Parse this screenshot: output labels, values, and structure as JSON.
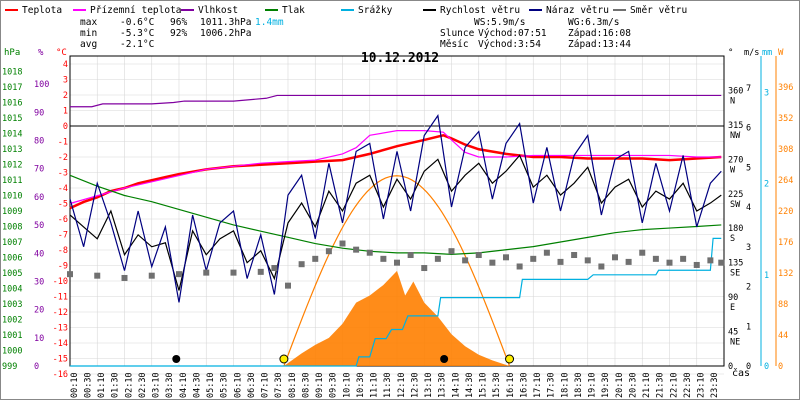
{
  "legend": [
    {
      "label": "Teplota",
      "color": "#ff0000"
    },
    {
      "label": "Přízemní teplota",
      "color": "#ff00ff"
    },
    {
      "label": "Vlhkost",
      "color": "#8000a0"
    },
    {
      "label": "Tlak",
      "color": "#008000"
    },
    {
      "label": "Srážky",
      "color": "#00b0e0"
    },
    {
      "label": "Rychlost větru",
      "color": "#000000"
    },
    {
      "label": "Náraz větru",
      "color": "#000080"
    },
    {
      "label": "Směr větru",
      "color": "#707070"
    }
  ],
  "stats": {
    "max": {
      "label": "max",
      "temp": "-0.6°C",
      "hum": "96%",
      "press": "1011.3hPa",
      "rain": "1.4mm"
    },
    "min": {
      "label": "min",
      "temp": "-5.3°C",
      "hum": "92%",
      "press": "1006.2hPa"
    },
    "avg": {
      "label": "avg",
      "temp": "-2.1°C"
    }
  },
  "wind_info": {
    "ws": "WS:5.9m/s",
    "wg": "WG:6.3m/s"
  },
  "sun": {
    "label": "Slunce",
    "rise": "Východ:07:51",
    "set": "Západ:16:08"
  },
  "moon": {
    "label": "Měsíc",
    "rise": "Východ:3:54",
    "set": "Západ:13:44"
  },
  "title": "10.12.2012",
  "x_unit_label": "čas",
  "chart_data": {
    "type": "line",
    "title": "10.12.2012",
    "x_ticks": [
      "00:10",
      "00:30",
      "01:10",
      "01:30",
      "02:10",
      "02:30",
      "03:10",
      "03:30",
      "04:10",
      "04:30",
      "05:10",
      "05:30",
      "06:10",
      "06:30",
      "07:10",
      "07:30",
      "08:10",
      "08:30",
      "09:10",
      "09:30",
      "10:10",
      "10:30",
      "11:10",
      "11:30",
      "12:10",
      "12:30",
      "13:10",
      "13:30",
      "14:10",
      "14:30",
      "15:10",
      "15:30",
      "16:10",
      "16:30",
      "17:10",
      "17:30",
      "18:10",
      "18:30",
      "19:10",
      "19:30",
      "20:10",
      "20:30",
      "21:10",
      "21:30",
      "22:10",
      "22:30",
      "23:10",
      "23:30"
    ],
    "axes": {
      "hpa": {
        "label": "hPa",
        "color": "#008000",
        "ticks": [
          "1018",
          "1017",
          "1016",
          "1015",
          "1014",
          "1013",
          "1012",
          "1011",
          "1010",
          "1009",
          "1008",
          "1007",
          "1006",
          "1005",
          "1004",
          "1003",
          "1002",
          "1001",
          "1000",
          "999"
        ],
        "range": [
          999,
          1019
        ]
      },
      "pct": {
        "label": "%",
        "color": "#8000a0",
        "ticks": [
          "100",
          "90",
          "80",
          "70",
          "60",
          "50",
          "40",
          "30",
          "20",
          "10",
          "0"
        ],
        "range": [
          0,
          110
        ]
      },
      "temp": {
        "label": "°C",
        "color": "#ff0000",
        "ticks": [
          "4",
          "3",
          "2",
          "1",
          "0",
          "-1",
          "-2",
          "-3",
          "-4",
          "-5",
          "-6",
          "-7",
          "-8",
          "-9",
          "-10",
          "-11",
          "-12",
          "-13",
          "-14",
          "-15",
          "-16"
        ],
        "range": [
          -16,
          5
        ]
      },
      "dir": {
        "label": "°",
        "ticks": [
          {
            "deg": "360",
            "dir": "N"
          },
          {
            "deg": "315",
            "dir": "NW"
          },
          {
            "deg": "270",
            "dir": "W"
          },
          {
            "deg": "225",
            "dir": "SW"
          },
          {
            "deg": "180",
            "dir": "S"
          },
          {
            "deg": "135",
            "dir": "SE"
          },
          {
            "deg": "90",
            "dir": "E"
          },
          {
            "deg": "45",
            "dir": "NE"
          },
          {
            "deg": "0",
            "dir": ""
          }
        ],
        "range": [
          0,
          405
        ]
      },
      "ms": {
        "label": "m/s",
        "ticks": [
          "7",
          "6",
          "5",
          "4",
          "3",
          "2",
          "1",
          "0"
        ]
      },
      "mm": {
        "label": "mm",
        "color": "#00b0e0",
        "ticks": [
          "3",
          "2",
          "1",
          "0"
        ]
      },
      "w": {
        "label": "W",
        "color": "#ff8000",
        "ticks": [
          "396",
          "352",
          "308",
          "264",
          "220",
          "176",
          "132",
          "88",
          "44",
          "0"
        ],
        "range": [
          0,
          440
        ]
      }
    },
    "series": [
      {
        "name": "Teplota",
        "color": "#ff0000",
        "axis": "temp",
        "x": [
          0,
          0.5,
          1,
          1.5,
          2,
          2.5,
          3,
          3.5,
          4,
          5,
          6,
          7,
          8,
          9,
          10,
          11,
          12,
          13,
          13.7,
          14,
          14.5,
          15,
          16,
          17,
          18,
          19,
          20,
          21,
          22,
          23,
          23.9
        ],
        "y": [
          -5.3,
          -4.9,
          -4.6,
          -4.2,
          -4.0,
          -3.7,
          -3.5,
          -3.3,
          -3.1,
          -2.8,
          -2.6,
          -2.5,
          -2.4,
          -2.3,
          -2.2,
          -1.8,
          -1.3,
          -0.9,
          -0.6,
          -0.8,
          -1.2,
          -1.5,
          -1.8,
          -2.0,
          -2.0,
          -2.1,
          -2.1,
          -2.1,
          -2.2,
          -2.1,
          -2.0
        ]
      },
      {
        "name": "Přízemní teplota",
        "color": "#ff00ff",
        "axis": "temp",
        "x": [
          0,
          1,
          2,
          3,
          4,
          5,
          6,
          7,
          8,
          9,
          10,
          10.5,
          11,
          12,
          13,
          13.7,
          14,
          14.5,
          15,
          16,
          17,
          18,
          19,
          20,
          21,
          22,
          23,
          23.9
        ],
        "y": [
          -5.0,
          -4.5,
          -4.0,
          -3.6,
          -3.2,
          -2.8,
          -2.6,
          -2.4,
          -2.3,
          -2.2,
          -1.8,
          -1.4,
          -0.6,
          -0.3,
          -0.3,
          -0.4,
          -0.9,
          -1.7,
          -2.0,
          -2.0,
          -1.9,
          -1.9,
          -1.9,
          -1.9,
          -1.9,
          -1.9,
          -2.0,
          -2.0
        ]
      },
      {
        "name": "Vlhkost",
        "color": "#8000a0",
        "axis": "pct",
        "x": [
          0,
          0.8,
          1.2,
          3,
          3.8,
          4.2,
          6,
          7.2,
          7.6,
          23.9
        ],
        "y": [
          92,
          92,
          93,
          93,
          93.5,
          94,
          94,
          95,
          96,
          96
        ]
      },
      {
        "name": "Tlak",
        "color": "#008000",
        "axis": "hpa",
        "x": [
          0,
          1,
          2,
          3,
          4,
          5,
          6,
          7,
          8,
          9,
          10,
          11,
          12,
          13,
          14,
          15,
          16,
          17,
          18,
          19,
          20,
          21,
          22,
          23,
          23.9
        ],
        "y": [
          1011.3,
          1010.6,
          1010.0,
          1009.6,
          1009.1,
          1008.6,
          1008.1,
          1007.7,
          1007.3,
          1006.9,
          1006.6,
          1006.4,
          1006.3,
          1006.3,
          1006.2,
          1006.3,
          1006.5,
          1006.7,
          1007.0,
          1007.3,
          1007.6,
          1007.8,
          1007.9,
          1008.0,
          1008.1
        ]
      },
      {
        "name": "Srážky",
        "color": "#00b0e0",
        "axis": "mm",
        "x": [
          0,
          10.5,
          10.6,
          11.0,
          11.2,
          11.6,
          11.8,
          12.2,
          12.4,
          13.5,
          13.6,
          16.5,
          16.6,
          19.0,
          19.2,
          21.5,
          21.6,
          23.5,
          23.6,
          23.9
        ],
        "y": [
          0,
          0,
          0.1,
          0.1,
          0.3,
          0.3,
          0.4,
          0.4,
          0.55,
          0.55,
          0.75,
          0.75,
          0.95,
          0.95,
          1.0,
          1.0,
          1.05,
          1.05,
          1.4,
          1.4
        ]
      },
      {
        "name": "Rychlost větru",
        "color": "#000000",
        "axis": "ms",
        "x": [
          0,
          0.5,
          1,
          1.5,
          2,
          2.5,
          3,
          3.5,
          4,
          4.5,
          5,
          5.5,
          6,
          6.5,
          7,
          7.5,
          8,
          8.5,
          9,
          9.5,
          10,
          10.5,
          11,
          11.5,
          12,
          12.5,
          13,
          13.5,
          14,
          14.5,
          15,
          15.5,
          16,
          16.5,
          17,
          17.5,
          18,
          18.5,
          19,
          19.5,
          20,
          20.5,
          21,
          21.5,
          22,
          22.5,
          23,
          23.5,
          23.9
        ],
        "y": [
          3.8,
          3.5,
          3.2,
          3.9,
          2.8,
          3.3,
          3.0,
          3.1,
          1.9,
          3.4,
          2.8,
          3.2,
          3.4,
          2.6,
          2.9,
          2.2,
          3.6,
          4.1,
          3.5,
          4.4,
          3.9,
          4.6,
          4.8,
          4.0,
          4.7,
          4.2,
          4.9,
          5.2,
          4.4,
          4.8,
          5.1,
          4.6,
          4.9,
          5.3,
          4.5,
          4.8,
          4.3,
          4.6,
          5.0,
          4.1,
          4.5,
          4.7,
          4.0,
          4.4,
          4.2,
          4.6,
          3.9,
          4.1,
          4.3
        ]
      },
      {
        "name": "Náraz větru",
        "color": "#000080",
        "axis": "ms",
        "x": [
          0,
          0.5,
          1,
          1.5,
          2,
          2.5,
          3,
          3.5,
          4,
          4.5,
          5,
          5.5,
          6,
          6.5,
          7,
          7.5,
          8,
          8.5,
          9,
          9.5,
          10,
          10.5,
          11,
          11.5,
          12,
          12.5,
          13,
          13.5,
          14,
          14.5,
          15,
          15.5,
          16,
          16.5,
          17,
          17.5,
          18,
          18.5,
          19,
          19.5,
          20,
          20.5,
          21,
          21.5,
          22,
          22.5,
          23,
          23.5,
          23.9
        ],
        "y": [
          4.2,
          3.0,
          4.6,
          3.6,
          2.4,
          3.9,
          2.5,
          3.5,
          1.6,
          3.8,
          2.4,
          3.6,
          3.9,
          2.2,
          3.3,
          1.8,
          4.3,
          4.8,
          3.2,
          5.1,
          3.6,
          5.4,
          5.6,
          3.7,
          5.4,
          3.9,
          5.8,
          6.3,
          4.0,
          5.5,
          5.9,
          4.2,
          5.6,
          6.1,
          4.1,
          5.5,
          3.9,
          5.3,
          5.8,
          3.8,
          5.2,
          5.4,
          3.6,
          5.1,
          3.9,
          5.3,
          3.5,
          4.6,
          4.9
        ]
      },
      {
        "name": "Směr větru",
        "color": "#707070",
        "axis": "dir",
        "x": [
          0,
          1,
          2,
          3,
          4,
          5,
          6,
          7,
          7.5,
          8,
          8.5,
          9,
          9.5,
          10,
          10.5,
          11,
          11.5,
          12,
          12.5,
          13,
          13.5,
          14,
          14.5,
          15,
          15.5,
          16,
          16.5,
          17,
          17.5,
          18,
          18.5,
          19,
          19.5,
          20,
          20.5,
          21,
          21.5,
          22,
          22.5,
          23,
          23.5,
          23.9
        ],
        "y": [
          120,
          118,
          115,
          118,
          120,
          122,
          122,
          123,
          128,
          105,
          133,
          140,
          150,
          160,
          152,
          148,
          140,
          135,
          145,
          128,
          140,
          150,
          138,
          145,
          135,
          142,
          130,
          140,
          148,
          136,
          145,
          138,
          130,
          142,
          136,
          148,
          140,
          135,
          140,
          132,
          138,
          135
        ]
      }
    ],
    "solar": {
      "name": "Sluneční záření",
      "color": "#ff8000",
      "axis": "w",
      "x": [
        7.85,
        8.5,
        9.0,
        9.5,
        10.0,
        10.5,
        11.0,
        11.5,
        12.0,
        12.3,
        12.6,
        13.0,
        13.5,
        14.0,
        14.5,
        15.0,
        15.5,
        16.13
      ],
      "y": [
        0,
        18,
        30,
        40,
        60,
        90,
        100,
        115,
        135,
        100,
        120,
        90,
        70,
        45,
        28,
        16,
        8,
        0
      ],
      "theory_peak": 270
    },
    "markers": [
      {
        "type": "sun",
        "hour": 7.85
      },
      {
        "type": "sun",
        "hour": 16.13
      },
      {
        "type": "moon",
        "hour": 3.9
      },
      {
        "type": "moon",
        "hour": 13.73
      }
    ]
  }
}
